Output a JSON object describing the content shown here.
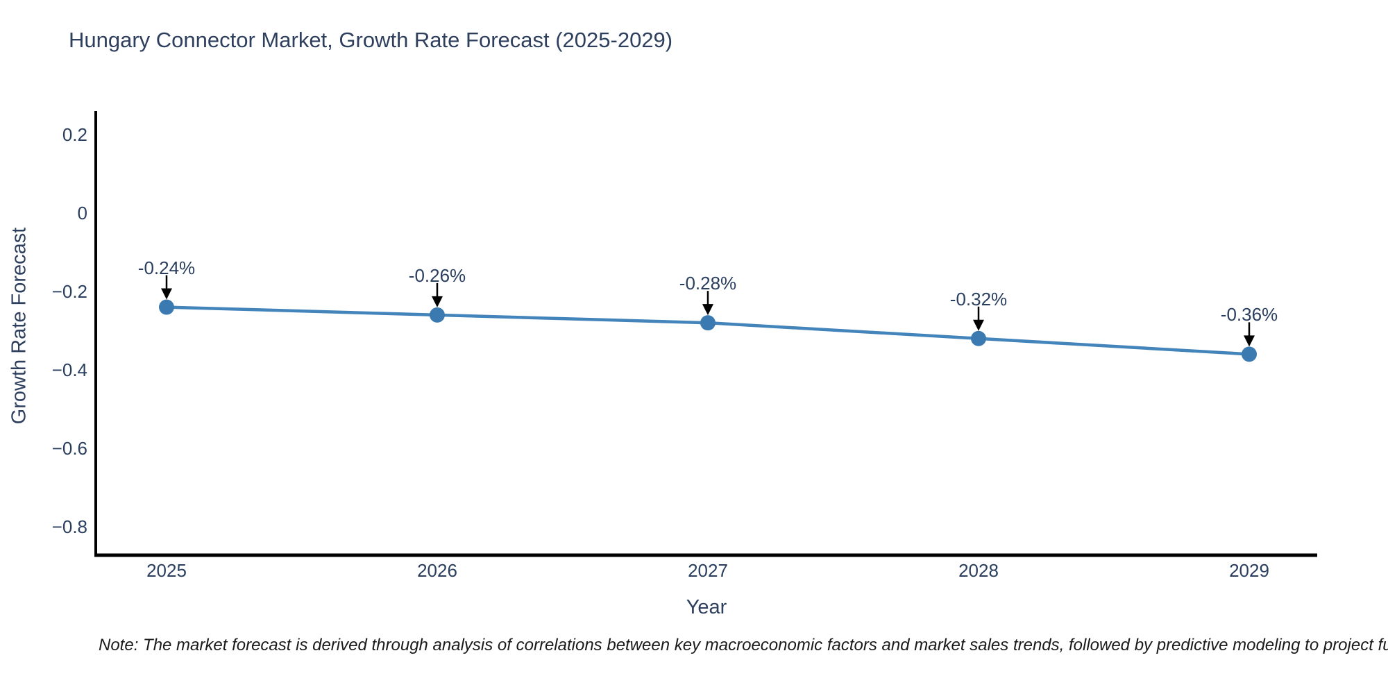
{
  "title": "Hungary Connector Market, Growth Rate Forecast (2025-2029)",
  "footnote": "Note: The market forecast is derived through analysis of correlations between key macroeconomic factors and market sales trends, followed by predictive modeling to project future sales.",
  "chart_data": {
    "type": "line",
    "title": "Hungary Connector Market, Growth Rate Forecast (2025-2029)",
    "xlabel": "Year",
    "ylabel": "Growth Rate Forecast",
    "categories": [
      2025,
      2026,
      2027,
      2028,
      2029
    ],
    "series": [
      {
        "name": "Growth Rate Forecast",
        "values": [
          -0.24,
          -0.26,
          -0.28,
          -0.32,
          -0.36
        ],
        "point_labels": [
          "-0.24%",
          "-0.26%",
          "-0.28%",
          "-0.32%",
          "-0.36%"
        ]
      }
    ],
    "x_tick_labels": [
      "2025",
      "2026",
      "2027",
      "2028",
      "2029"
    ],
    "y_tick_values": [
      0.2,
      0,
      -0.2,
      -0.4,
      -0.6,
      -0.8
    ],
    "y_tick_labels": [
      "0.2",
      "0",
      "−0.2",
      "−0.4",
      "−0.6",
      "−0.8"
    ],
    "xlim": [
      2024.7385,
      2029.2513
    ],
    "ylim": [
      -0.8725,
      0.26
    ],
    "grid": false,
    "legend": "none",
    "annotations_have_arrows": true,
    "colors": {
      "line": "#4384bb",
      "marker": "#3a7ab1",
      "axis_line": "#000000",
      "arrow": "#000000",
      "title_text": "#2e3f5e",
      "tick_text": "#2a3f5f",
      "annotation_text": "#2a3f5f",
      "footnote_text": "#1a1a1a"
    }
  }
}
